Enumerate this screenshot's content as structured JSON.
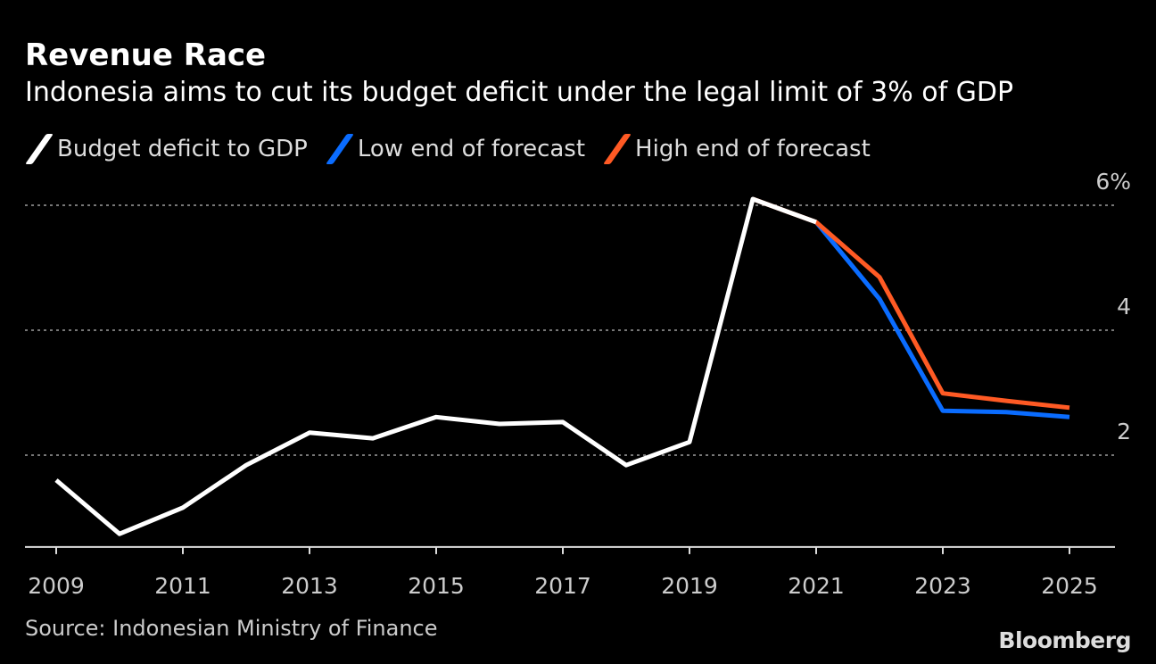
{
  "chart_data": {
    "type": "line",
    "title": "Revenue Race",
    "subtitle": "Indonesia aims to cut its budget deficit under the legal limit of 3% of GDP",
    "xlabel": "",
    "ylabel": "",
    "ylim": [
      0.53,
      6.1
    ],
    "xlim": [
      2008.5,
      2025.7
    ],
    "grid": true,
    "legend_position": "top-left",
    "yticks": [
      {
        "value": 2,
        "label": "2"
      },
      {
        "value": 4,
        "label": "4"
      },
      {
        "value": 6,
        "label": "6%"
      }
    ],
    "xticks": [
      2009,
      2011,
      2013,
      2015,
      2017,
      2019,
      2021,
      2023,
      2025
    ],
    "xtick_labels": [
      "2009",
      "2011",
      "2013",
      "2015",
      "2017",
      "2019",
      "2021",
      "2023",
      "2025"
    ],
    "series": [
      {
        "name": "Budget deficit to GDP",
        "color": "#ffffff",
        "x": [
          2009,
          2010,
          2011,
          2012,
          2013,
          2014,
          2015,
          2016,
          2017,
          2018,
          2019,
          2020,
          2021
        ],
        "values": [
          1.6,
          0.74,
          1.16,
          1.84,
          2.36,
          2.27,
          2.61,
          2.5,
          2.53,
          1.84,
          2.21,
          6.1,
          5.73
        ]
      },
      {
        "name": "Low end of forecast",
        "color": "#0a6cff",
        "x": [
          2021,
          2022,
          2023,
          2024,
          2025
        ],
        "values": [
          5.73,
          4.5,
          2.71,
          2.69,
          2.61
        ]
      },
      {
        "name": "High end of forecast",
        "color": "#ff5a24",
        "x": [
          2020,
          2021,
          2022,
          2023,
          2024,
          2025
        ],
        "values": [
          6.1,
          5.73,
          4.85,
          2.99,
          2.87,
          2.76
        ]
      }
    ]
  },
  "source": "Source: Indonesian Ministry of Finance",
  "logo": "Bloomberg"
}
